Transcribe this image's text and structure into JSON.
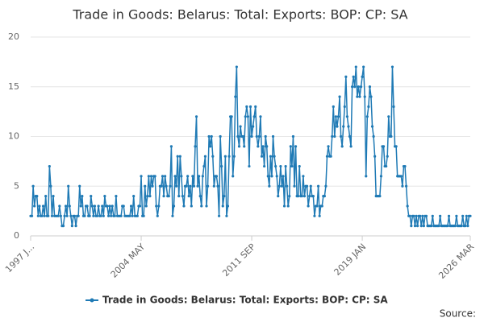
{
  "chart_data": {
    "type": "line",
    "title": "Trade in Goods: Belarus: Total: Exports: BOP: CP: SA",
    "source": "Source:",
    "x": [
      "1997 JAN",
      "1997 FEB",
      "1997 MAR",
      "1997 APR",
      "1997 MAY",
      "1997 JUN",
      "1997 JUL",
      "1997 AUG",
      "1997 SEP",
      "1997 OCT",
      "1997 NOV",
      "1997 DEC",
      "1998 JAN",
      "1998 FEB",
      "1998 MAR",
      "1998 APR",
      "1998 MAY",
      "1998 JUN",
      "1998 JUL",
      "1998 AUG",
      "1998 SEP",
      "1998 OCT",
      "1998 NOV",
      "1998 DEC",
      "1999 JAN",
      "1999 FEB",
      "1999 MAR",
      "1999 APR",
      "1999 MAY",
      "1999 JUN",
      "1999 JUL",
      "1999 AUG",
      "1999 SEP",
      "1999 OCT",
      "1999 NOV",
      "1999 DEC",
      "2000 JAN",
      "2000 FEB",
      "2000 MAR",
      "2000 APR",
      "2000 MAY",
      "2000 JUN",
      "2000 JUL",
      "2000 AUG",
      "2000 SEP",
      "2000 OCT",
      "2000 NOV",
      "2000 DEC",
      "2001 JAN",
      "2001 FEB",
      "2001 MAR",
      "2001 APR",
      "2001 MAY",
      "2001 JUN",
      "2001 JUL",
      "2001 AUG",
      "2001 SEP",
      "2001 OCT",
      "2001 NOV",
      "2001 DEC",
      "2002 JAN",
      "2002 FEB",
      "2002 MAR",
      "2002 APR",
      "2002 MAY",
      "2002 JUN",
      "2002 JUL",
      "2002 AUG",
      "2002 SEP",
      "2002 OCT",
      "2002 NOV",
      "2002 DEC",
      "2003 JAN",
      "2003 FEB",
      "2003 MAR",
      "2003 APR",
      "2003 MAY",
      "2003 JUN",
      "2003 JUL",
      "2003 AUG",
      "2003 SEP",
      "2003 OCT",
      "2003 NOV",
      "2003 DEC",
      "2004 JAN",
      "2004 FEB",
      "2004 MAR",
      "2004 APR",
      "2004 MAY",
      "2004 JUN",
      "2004 JUL",
      "2004 AUG",
      "2004 SEP",
      "2004 OCT",
      "2004 NOV",
      "2004 DEC",
      "2005 JAN",
      "2005 FEB",
      "2005 MAR",
      "2005 APR",
      "2005 MAY",
      "2005 JUN",
      "2005 JUL",
      "2005 AUG",
      "2005 SEP",
      "2005 OCT",
      "2005 NOV",
      "2005 DEC",
      "2006 JAN",
      "2006 FEB",
      "2006 MAR",
      "2006 APR",
      "2006 MAY",
      "2006 JUN",
      "2006 JUL",
      "2006 AUG",
      "2006 SEP",
      "2006 OCT",
      "2006 NOV",
      "2006 DEC",
      "2007 JAN",
      "2007 FEB",
      "2007 MAR",
      "2007 APR",
      "2007 MAY",
      "2007 JUN",
      "2007 JUL",
      "2007 AUG",
      "2007 SEP",
      "2007 OCT",
      "2007 NOV",
      "2007 DEC",
      "2008 JAN",
      "2008 FEB",
      "2008 MAR",
      "2008 APR",
      "2008 MAY",
      "2008 JUN",
      "2008 JUL",
      "2008 AUG",
      "2008 SEP",
      "2008 OCT",
      "2008 NOV",
      "2008 DEC",
      "2009 JAN",
      "2009 FEB",
      "2009 MAR",
      "2009 APR",
      "2009 MAY",
      "2009 JUN",
      "2009 JUL",
      "2009 AUG",
      "2009 SEP",
      "2009 OCT",
      "2009 NOV",
      "2009 DEC",
      "2010 JAN",
      "2010 FEB",
      "2010 MAR",
      "2010 APR",
      "2010 MAY",
      "2010 JUN",
      "2010 JUL",
      "2010 AUG",
      "2010 SEP",
      "2010 OCT",
      "2010 NOV",
      "2010 DEC",
      "2011 JAN",
      "2011 FEB",
      "2011 MAR",
      "2011 APR",
      "2011 MAY",
      "2011 JUN",
      "2011 JUL",
      "2011 AUG",
      "2011 SEP",
      "2011 OCT",
      "2011 NOV",
      "2011 DEC",
      "2012 JAN",
      "2012 FEB",
      "2012 MAR",
      "2012 APR",
      "2012 MAY",
      "2012 JUN",
      "2012 JUL",
      "2012 AUG",
      "2012 SEP",
      "2012 OCT",
      "2012 NOV",
      "2012 DEC",
      "2013 JAN",
      "2013 FEB",
      "2013 MAR",
      "2013 APR",
      "2013 MAY",
      "2013 JUN",
      "2013 JUL",
      "2013 AUG",
      "2013 SEP",
      "2013 OCT",
      "2013 NOV",
      "2013 DEC",
      "2014 JAN",
      "2014 FEB",
      "2014 MAR",
      "2014 APR",
      "2014 MAY",
      "2014 JUN",
      "2014 JUL",
      "2014 AUG",
      "2014 SEP",
      "2014 OCT",
      "2014 NOV",
      "2014 DEC",
      "2015 JAN",
      "2015 FEB",
      "2015 MAR",
      "2015 APR",
      "2015 MAY",
      "2015 JUN",
      "2015 JUL",
      "2015 AUG",
      "2015 SEP",
      "2015 OCT",
      "2015 NOV",
      "2015 DEC",
      "2016 JAN",
      "2016 FEB",
      "2016 MAR",
      "2016 APR",
      "2016 MAY",
      "2016 JUN",
      "2016 JUL",
      "2016 AUG",
      "2016 SEP",
      "2016 OCT",
      "2016 NOV",
      "2016 DEC",
      "2017 JAN",
      "2017 FEB",
      "2017 MAR",
      "2017 APR",
      "2017 MAY",
      "2017 JUN",
      "2017 JUL",
      "2017 AUG",
      "2017 SEP",
      "2017 OCT",
      "2017 NOV",
      "2017 DEC",
      "2018 JAN",
      "2018 FEB",
      "2018 MAR",
      "2018 APR",
      "2018 MAY",
      "2018 JUN",
      "2018 JUL",
      "2018 AUG",
      "2018 SEP",
      "2018 OCT",
      "2018 NOV",
      "2018 DEC",
      "2019 JAN",
      "2019 FEB",
      "2019 MAR",
      "2019 APR",
      "2019 MAY",
      "2019 JUN",
      "2019 JUL",
      "2019 AUG",
      "2019 SEP",
      "2019 OCT",
      "2019 NOV",
      "2019 DEC",
      "2020 JAN",
      "2020 FEB",
      "2020 MAR",
      "2020 APR",
      "2020 MAY",
      "2020 JUN",
      "2020 JUL",
      "2020 AUG",
      "2020 SEP",
      "2020 OCT",
      "2020 NOV",
      "2020 DEC",
      "2021 JAN",
      "2021 FEB",
      "2021 MAR",
      "2021 APR",
      "2021 MAY",
      "2021 JUN",
      "2021 JUL",
      "2021 AUG",
      "2021 SEP",
      "2021 OCT",
      "2021 NOV",
      "2021 DEC",
      "2022 JAN",
      "2022 FEB",
      "2022 MAR",
      "2022 APR",
      "2022 MAY",
      "2022 JUN",
      "2022 JUL",
      "2022 AUG",
      "2022 SEP",
      "2022 OCT",
      "2022 NOV",
      "2022 DEC",
      "2023 JAN",
      "2023 FEB",
      "2023 MAR",
      "2023 APR",
      "2023 MAY",
      "2023 JUN",
      "2023 JUL",
      "2023 AUG",
      "2023 SEP",
      "2023 OCT",
      "2023 NOV",
      "2023 DEC",
      "2024 JAN",
      "2024 FEB",
      "2024 MAR",
      "2024 APR",
      "2024 MAY",
      "2024 JUN",
      "2024 JUL",
      "2024 AUG",
      "2024 SEP",
      "2024 OCT",
      "2024 NOV",
      "2024 DEC",
      "2025 JAN",
      "2025 FEB",
      "2025 MAR",
      "2025 APR",
      "2025 MAY",
      "2025 JUN",
      "2025 JUL",
      "2025 AUG",
      "2025 SEP",
      "2025 OCT",
      "2025 NOV",
      "2025 DEC",
      "2026 JAN",
      "2026 FEB",
      "2026 MAR"
    ],
    "series": [
      {
        "name": "Trade in Goods: Belarus: Total: Exports: BOP: CP: SA",
        "color": "#1f7ab5",
        "values": [
          2,
          2,
          5,
          3,
          4,
          4,
          2,
          3,
          2,
          2,
          3,
          2,
          4,
          2,
          2,
          7,
          5,
          2,
          4,
          2,
          2,
          2,
          2,
          3,
          2,
          1,
          1,
          2,
          3,
          2,
          5,
          3,
          2,
          1,
          2,
          2,
          1,
          2,
          2,
          5,
          3,
          4,
          2,
          2,
          3,
          3,
          2,
          2,
          4,
          3,
          2,
          3,
          2,
          2,
          3,
          2,
          2,
          3,
          2,
          4,
          3,
          3,
          2,
          3,
          2,
          3,
          2,
          2,
          4,
          2,
          2,
          2,
          2,
          3,
          3,
          2,
          2,
          2,
          2,
          2,
          3,
          2,
          4,
          2,
          2,
          2,
          3,
          3,
          6,
          2,
          2,
          5,
          3,
          4,
          6,
          4,
          6,
          5,
          6,
          6,
          3,
          2,
          3,
          5,
          5,
          6,
          4,
          6,
          5,
          4,
          4,
          5,
          9,
          2,
          3,
          6,
          5,
          8,
          4,
          8,
          6,
          4,
          3,
          5,
          5,
          6,
          4,
          5,
          3,
          6,
          5,
          9,
          12,
          5,
          6,
          4,
          3,
          6,
          7,
          8,
          3,
          5,
          10,
          9,
          10,
          8,
          5,
          6,
          6,
          5,
          2,
          10,
          7,
          3,
          4,
          8,
          2,
          3,
          8,
          12,
          12,
          6,
          8,
          14,
          17,
          10,
          9,
          11,
          10,
          10,
          9,
          12,
          13,
          12,
          7,
          13,
          10,
          11,
          12,
          13,
          10,
          9,
          10,
          12,
          8,
          9,
          7,
          10,
          9,
          6,
          5,
          8,
          6,
          10,
          8,
          7,
          6,
          4,
          5,
          7,
          5,
          6,
          3,
          7,
          5,
          3,
          4,
          9,
          7,
          10,
          5,
          9,
          4,
          4,
          7,
          4,
          4,
          6,
          4,
          5,
          5,
          3,
          4,
          5,
          4,
          4,
          2,
          3,
          3,
          5,
          2,
          3,
          3,
          4,
          4,
          5,
          8,
          9,
          8,
          8,
          10,
          13,
          10,
          12,
          11,
          12,
          14,
          10,
          9,
          11,
          13,
          16,
          12,
          11,
          10,
          9,
          15,
          16,
          15,
          17,
          14,
          15,
          14,
          15,
          16,
          17,
          14,
          6,
          12,
          13,
          15,
          14,
          11,
          10,
          8,
          4,
          4,
          4,
          4,
          6,
          9,
          9,
          7,
          7,
          8,
          12,
          10,
          10,
          17,
          13,
          9,
          9,
          6,
          6,
          6,
          6,
          5,
          7,
          7,
          5,
          3,
          2,
          2,
          1,
          2,
          2,
          1,
          2,
          1,
          2,
          2,
          1,
          2,
          1,
          2,
          2,
          1,
          1,
          1,
          1,
          2,
          1,
          1,
          1,
          1,
          1,
          2,
          1,
          1,
          1,
          1,
          1,
          1,
          2,
          1,
          1,
          1,
          1,
          1,
          2,
          1,
          1,
          1,
          1,
          2,
          1,
          1,
          2,
          1,
          2,
          2
        ]
      }
    ],
    "xlim": [
      "1997 JAN",
      "2026 MAR"
    ],
    "xticks": [
      {
        "value": "1997 JAN",
        "label": "1997 J..."
      },
      "2004 MAY",
      "2011 SEP",
      "2019 JAN",
      "2026 MAR"
    ],
    "ylim": [
      0,
      20
    ],
    "yticks": [
      0,
      5,
      10,
      15,
      20
    ],
    "grid": true
  }
}
